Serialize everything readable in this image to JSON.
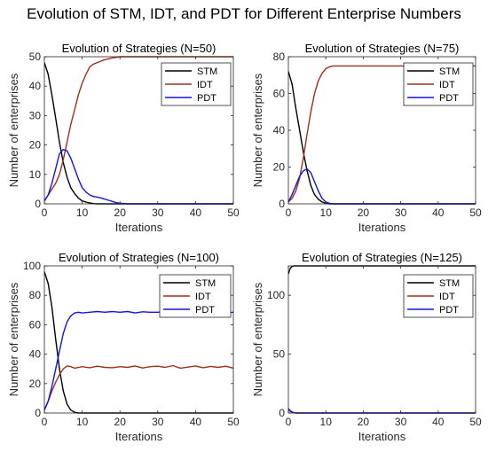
{
  "figure": {
    "title": "Evolution of STM, IDT, and PDT for Different Enterprise Numbers"
  },
  "colors": {
    "STM": "#000000",
    "IDT": "#a0301c",
    "PDT": "#1515e0"
  },
  "chart_data": [
    {
      "type": "line",
      "title": "Evolution of Strategies (N=50)",
      "xlabel": "Iterations",
      "ylabel": "Number of enterprises",
      "xlim": [
        0,
        50
      ],
      "ylim": [
        0,
        50
      ],
      "xticks": [
        0,
        10,
        20,
        30,
        40,
        50
      ],
      "yticks": [
        0,
        10,
        20,
        30,
        40,
        50
      ],
      "legend": "top-right",
      "grid": false,
      "series": [
        {
          "name": "STM",
          "x": [
            0,
            1,
            2,
            3,
            4,
            5,
            6,
            7,
            8,
            9,
            10,
            11,
            12,
            13,
            14,
            15,
            20,
            25,
            30,
            35,
            40,
            45,
            50
          ],
          "y": [
            48,
            44,
            37,
            29,
            21,
            14,
            9,
            5.5,
            3.5,
            2,
            1,
            0.6,
            0.3,
            0.1,
            0,
            0,
            0,
            0,
            0,
            0,
            0,
            0,
            0
          ]
        },
        {
          "name": "IDT",
          "x": [
            0,
            1,
            2,
            3,
            4,
            5,
            6,
            7,
            8,
            9,
            10,
            11,
            12,
            13,
            14,
            15,
            16,
            17,
            18,
            20,
            25,
            30,
            35,
            40,
            45,
            50
          ],
          "y": [
            1,
            3,
            5,
            7,
            10,
            15,
            21,
            27,
            32,
            37,
            41,
            44,
            46.5,
            47.5,
            48,
            48.5,
            49,
            49.3,
            49.6,
            50,
            50,
            50,
            50,
            50,
            50,
            50
          ]
        },
        {
          "name": "PDT",
          "x": [
            0,
            1,
            2,
            3,
            4,
            5,
            6,
            7,
            8,
            9,
            10,
            11,
            12,
            13,
            14,
            15,
            16,
            17,
            18,
            19,
            20,
            22,
            25,
            30,
            35,
            40,
            45,
            50
          ],
          "y": [
            1,
            3,
            7,
            12,
            17,
            18.5,
            18,
            15.5,
            12,
            8.5,
            5.5,
            4,
            3,
            2.5,
            2.3,
            2,
            1.6,
            1.2,
            0.8,
            0.4,
            0.2,
            0,
            0,
            0,
            0,
            0,
            0,
            0
          ]
        }
      ]
    },
    {
      "type": "line",
      "title": "Evolution of Strategies (N=75)",
      "xlabel": "Iterations",
      "ylabel": "Number of enterprises",
      "xlim": [
        0,
        50
      ],
      "ylim": [
        0,
        80
      ],
      "xticks": [
        0,
        10,
        20,
        30,
        40,
        50
      ],
      "yticks": [
        0,
        20,
        40,
        60,
        80
      ],
      "legend": "top-right",
      "grid": false,
      "series": [
        {
          "name": "STM",
          "x": [
            0,
            1,
            2,
            3,
            4,
            5,
            6,
            7,
            8,
            9,
            10,
            11,
            12,
            15,
            20,
            30,
            40,
            50
          ],
          "y": [
            72,
            65,
            52,
            40,
            28,
            18,
            10,
            5,
            2.5,
            1,
            0.3,
            0,
            0,
            0,
            0,
            0,
            0,
            0
          ]
        },
        {
          "name": "IDT",
          "x": [
            0,
            1,
            2,
            3,
            4,
            5,
            6,
            7,
            8,
            9,
            10,
            11,
            12,
            15,
            20,
            30,
            40,
            50
          ],
          "y": [
            1,
            3,
            7,
            14,
            25,
            38,
            50,
            60,
            67,
            71,
            73.5,
            74.5,
            75,
            75,
            75,
            75,
            75,
            75
          ]
        },
        {
          "name": "PDT",
          "x": [
            0,
            1,
            2,
            3,
            4,
            5,
            6,
            7,
            8,
            9,
            10,
            11,
            12,
            15,
            20,
            30,
            40,
            50
          ],
          "y": [
            1,
            5,
            10,
            15,
            18,
            19,
            17,
            12,
            7,
            3,
            1,
            0.3,
            0,
            0,
            0,
            0,
            0,
            0
          ]
        }
      ]
    },
    {
      "type": "line",
      "title": "Evolution of Strategies (N=100)",
      "xlabel": "Iterations",
      "ylabel": "Number of enterprises",
      "xlim": [
        0,
        50
      ],
      "ylim": [
        0,
        100
      ],
      "xticks": [
        0,
        10,
        20,
        30,
        40,
        50
      ],
      "yticks": [
        0,
        20,
        40,
        60,
        80,
        100
      ],
      "legend": "top-right",
      "grid": false,
      "series": [
        {
          "name": "STM",
          "x": [
            0,
            1,
            2,
            3,
            4,
            5,
            6,
            7,
            8,
            9,
            10,
            15,
            20,
            30,
            40,
            50
          ],
          "y": [
            96,
            88,
            72,
            50,
            30,
            15,
            6,
            2,
            0.5,
            0,
            0,
            0,
            0,
            0,
            0,
            0
          ]
        },
        {
          "name": "IDT",
          "x": [
            0,
            1,
            2,
            3,
            4,
            5,
            6,
            7,
            8,
            10,
            12,
            14,
            16,
            18,
            20,
            22,
            24,
            26,
            28,
            30,
            32,
            34,
            36,
            38,
            40,
            42,
            44,
            46,
            48,
            50
          ],
          "y": [
            2,
            8,
            15,
            21,
            26,
            30,
            32,
            31.5,
            30.5,
            31.5,
            30.8,
            31.8,
            31,
            30.8,
            31.5,
            31,
            32,
            30.6,
            31.5,
            31.8,
            31,
            32.2,
            30.5,
            31.2,
            32,
            30.8,
            31.7,
            31,
            31.8,
            30.5
          ]
        },
        {
          "name": "PDT",
          "x": [
            0,
            1,
            2,
            3,
            4,
            5,
            6,
            7,
            8,
            9,
            10,
            12,
            14,
            16,
            18,
            20,
            22,
            24,
            26,
            28,
            30,
            32,
            34,
            36,
            38,
            40,
            42,
            44,
            46,
            48,
            50
          ],
          "y": [
            2,
            8,
            18,
            30,
            42,
            54,
            62,
            66,
            68,
            68.5,
            68,
            68.5,
            69,
            68.5,
            69,
            68.5,
            69,
            68,
            68.8,
            68.5,
            68.5,
            69,
            68,
            68.5,
            67.8,
            68,
            68.5,
            68.3,
            67.5,
            68,
            68.5
          ]
        }
      ]
    },
    {
      "type": "line",
      "title": "Evolution of Strategies (N=125)",
      "xlabel": "Iterations",
      "ylabel": "Number of enterprises",
      "xlim": [
        0,
        50
      ],
      "ylim": [
        0,
        125
      ],
      "xticks": [
        0,
        10,
        20,
        30,
        40,
        50
      ],
      "yticks": [
        0,
        50,
        100
      ],
      "legend": "top-right",
      "grid": false,
      "series": [
        {
          "name": "STM",
          "x": [
            0,
            0.5,
            1,
            1.5,
            2,
            3,
            5,
            10,
            20,
            30,
            40,
            50
          ],
          "y": [
            118,
            123,
            124.5,
            125,
            125,
            125,
            125,
            125,
            125,
            125,
            125,
            125
          ]
        },
        {
          "name": "IDT",
          "x": [
            0,
            0.5,
            1,
            1.5,
            2,
            5,
            10,
            20,
            30,
            40,
            50
          ],
          "y": [
            4,
            2,
            1,
            0.3,
            0,
            0,
            0,
            0,
            0,
            0,
            0
          ]
        },
        {
          "name": "PDT",
          "x": [
            0,
            0.5,
            1,
            1.5,
            2,
            5,
            10,
            20,
            30,
            40,
            50
          ],
          "y": [
            3,
            1.5,
            0.6,
            0.2,
            0,
            0,
            0,
            0,
            0,
            0,
            0
          ]
        }
      ]
    }
  ]
}
